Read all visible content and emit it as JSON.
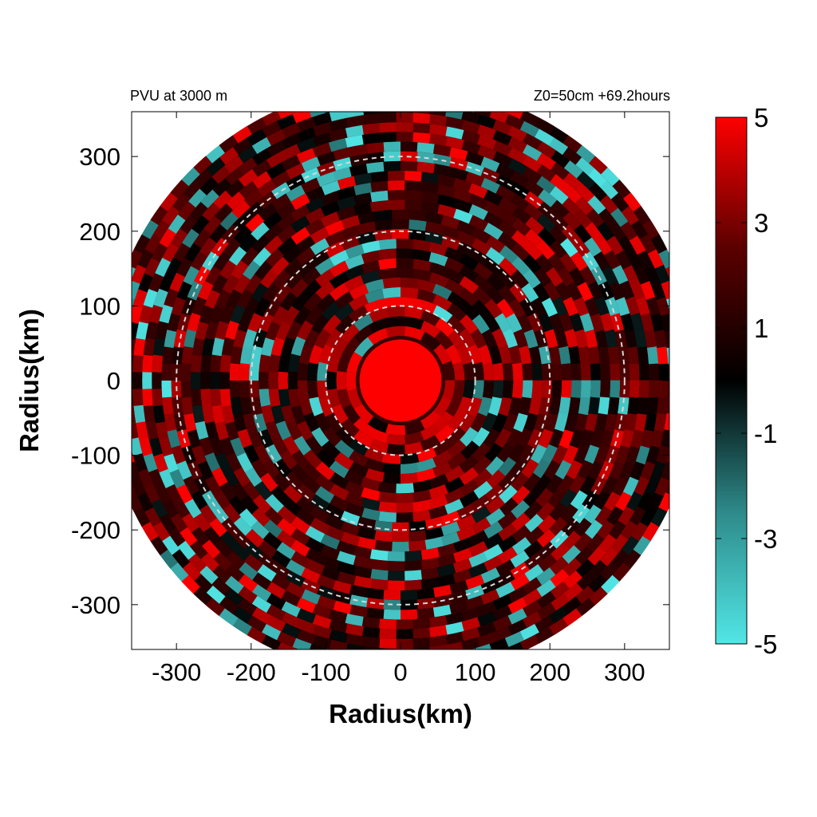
{
  "chart_data": {
    "type": "heatmap",
    "title_left": "PVU at  3000 m",
    "title_right": "Z0=50cm  +69.2hours",
    "xlabel": "Radius(km)",
    "ylabel": "Radius(km)",
    "xlim": [
      -360,
      360
    ],
    "ylim": [
      -360,
      360
    ],
    "xticks": [
      "-300",
      "-200",
      "-100",
      "0",
      "100",
      "200",
      "300"
    ],
    "yticks": [
      "300",
      "200",
      "100",
      "0",
      "-100",
      "-200",
      "-300"
    ],
    "xtick_values": [
      -300,
      -200,
      -100,
      0,
      100,
      200,
      300
    ],
    "ytick_values": [
      300,
      200,
      100,
      0,
      -100,
      -200,
      -300
    ],
    "domain_radius_km": 390,
    "dashed_circle_radii_km": [
      100,
      200,
      300
    ],
    "core_radius_km": 55,
    "colorbar": {
      "min": -5,
      "max": 5,
      "ticks": [
        "5",
        "3",
        "1",
        "-1",
        "-3",
        "-5"
      ],
      "tick_values": [
        5,
        3,
        1,
        -1,
        -3,
        -5
      ],
      "colors": [
        "#52e6e6",
        "#2e8a8a",
        "#000000",
        "#5a0000",
        "#ff0000"
      ]
    },
    "colors": {
      "positive": "#ff0000",
      "negative": "#4fe0e0",
      "neutral": "#000000",
      "dashed_circle": "#d8d8d8"
    },
    "grid": false,
    "legend": "right colorbar"
  }
}
